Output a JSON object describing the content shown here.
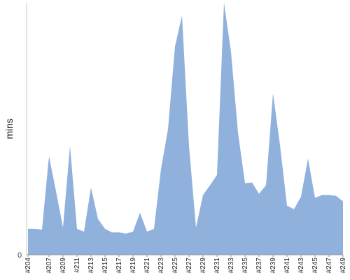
{
  "chart_data": {
    "type": "area",
    "title": "",
    "xlabel": "",
    "ylabel": "mins",
    "y_zero_label": "0",
    "color": "#8fb1db",
    "grid": false,
    "ylim": [
      0,
      100
    ],
    "x": [
      "#204",
      "#205",
      "#206",
      "#207",
      "#208",
      "#209",
      "#210",
      "#211",
      "#212",
      "#213",
      "#214",
      "#215",
      "#216",
      "#217",
      "#218",
      "#219",
      "#220",
      "#221",
      "#222",
      "#223",
      "#224",
      "#225",
      "#226",
      "#227",
      "#228",
      "#229",
      "#230",
      "#231",
      "#232",
      "#233",
      "#234",
      "#235",
      "#236",
      "#237",
      "#238",
      "#239",
      "#240",
      "#241",
      "#242",
      "#243",
      "#244",
      "#245",
      "#246",
      "#247",
      "#248",
      "#249"
    ],
    "xtick_labels": [
      "#204",
      "#207",
      "#209",
      "#211",
      "#213",
      "#215",
      "#217",
      "#219",
      "#221",
      "#223",
      "#225",
      "#227",
      "#229",
      "#231",
      "#233",
      "#235",
      "#237",
      "#239",
      "#241",
      "#243",
      "#245",
      "#247",
      "#249"
    ],
    "values": [
      10.3,
      10.3,
      10.0,
      39.1,
      25.2,
      10.8,
      43.2,
      10.3,
      9.2,
      26.7,
      14.2,
      10.3,
      8.9,
      8.9,
      8.4,
      9.2,
      16.7,
      9.2,
      10.3,
      34.0,
      49.9,
      82.7,
      94.9,
      43.2,
      10.8,
      23.7,
      27.6,
      31.7,
      100.0,
      80.5,
      48.5,
      28.4,
      28.7,
      24.2,
      27.6,
      64.1,
      43.5,
      19.5,
      18.1,
      23.1,
      38.2,
      22.6,
      23.7,
      23.7,
      23.4,
      21.2
    ]
  }
}
